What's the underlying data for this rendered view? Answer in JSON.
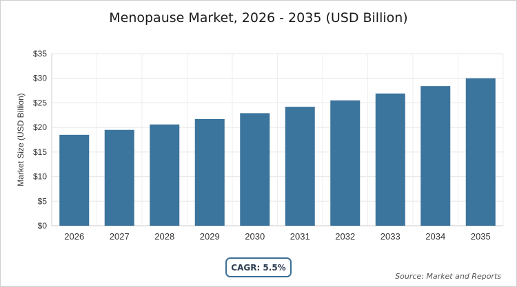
{
  "chart_data": {
    "type": "bar",
    "title": "Menopause Market, 2026 - 2035 (USD Billion)",
    "xlabel": "",
    "ylabel": "Market Size (USD Billion)",
    "categories": [
      "2026",
      "2027",
      "2028",
      "2029",
      "2030",
      "2031",
      "2032",
      "2033",
      "2034",
      "2035"
    ],
    "values": [
      18.5,
      19.5,
      20.6,
      21.7,
      22.9,
      24.2,
      25.5,
      26.9,
      28.4,
      30.0
    ],
    "ylim": [
      0,
      35
    ],
    "yticks": [
      "$0",
      "$5",
      "$10",
      "$15",
      "$20",
      "$25",
      "$30",
      "$35"
    ],
    "grid": true,
    "bar_color": "#3b749c"
  },
  "cagr_label": "CAGR: 5.5%",
  "source_label": "Source: Market and Reports"
}
